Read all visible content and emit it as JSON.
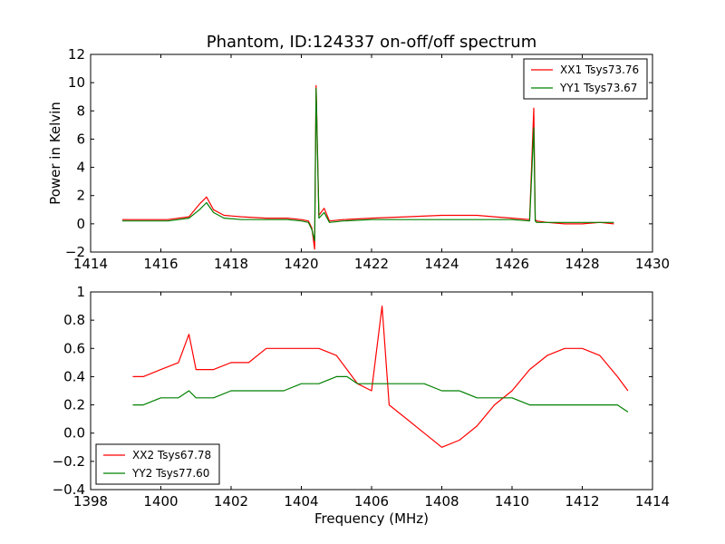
{
  "figure": {
    "title": "Phantom, ID:124337 on-off/off spectrum",
    "shared_xlabel": "Frequency (MHz)"
  },
  "chart_data": [
    {
      "type": "line",
      "title": "Phantom, ID:124337 on-off/off spectrum",
      "xlabel": "",
      "ylabel": "Power in Kelvin",
      "xlim": [
        1414,
        1430
      ],
      "ylim": [
        -2,
        12
      ],
      "xticks": [
        1414,
        1416,
        1418,
        1420,
        1422,
        1424,
        1426,
        1428,
        1430
      ],
      "yticks": [
        -2,
        0,
        2,
        4,
        6,
        8,
        10,
        12
      ],
      "grid": false,
      "legend_position": "top-right",
      "series": [
        {
          "name": "XX1 Tsys73.76",
          "color": "#ff0000",
          "x": [
            1414.9,
            1415.5,
            1416.2,
            1416.8,
            1417.1,
            1417.3,
            1417.5,
            1417.8,
            1418.3,
            1419.0,
            1419.6,
            1420.0,
            1420.2,
            1420.3,
            1420.38,
            1420.42,
            1420.5,
            1420.65,
            1420.8,
            1421.2,
            1422.0,
            1423.0,
            1424.0,
            1424.5,
            1425.0,
            1425.5,
            1426.0,
            1426.5,
            1426.62,
            1426.66,
            1426.7,
            1427.0,
            1427.5,
            1428.0,
            1428.5,
            1428.9
          ],
          "y": [
            0.3,
            0.3,
            0.3,
            0.5,
            1.4,
            1.9,
            1.0,
            0.6,
            0.5,
            0.4,
            0.4,
            0.3,
            0.2,
            -0.3,
            -1.8,
            9.8,
            0.6,
            1.1,
            0.2,
            0.3,
            0.4,
            0.5,
            0.6,
            0.6,
            0.6,
            0.5,
            0.4,
            0.3,
            8.2,
            0.3,
            0.2,
            0.1,
            0.0,
            0.0,
            0.1,
            0.0
          ]
        },
        {
          "name": "YY1 Tsys73.67",
          "color": "#008000",
          "x": [
            1414.9,
            1415.5,
            1416.2,
            1416.8,
            1417.1,
            1417.3,
            1417.5,
            1417.8,
            1418.3,
            1419.0,
            1419.6,
            1420.0,
            1420.2,
            1420.3,
            1420.38,
            1420.42,
            1420.5,
            1420.65,
            1420.8,
            1421.2,
            1422.0,
            1423.0,
            1424.0,
            1424.5,
            1425.0,
            1425.5,
            1426.0,
            1426.5,
            1426.62,
            1426.66,
            1426.7,
            1427.0,
            1427.5,
            1428.0,
            1428.5,
            1428.9
          ],
          "y": [
            0.2,
            0.2,
            0.2,
            0.4,
            1.0,
            1.5,
            0.8,
            0.4,
            0.3,
            0.3,
            0.3,
            0.2,
            0.1,
            -0.4,
            -1.2,
            9.6,
            0.4,
            0.8,
            0.1,
            0.2,
            0.3,
            0.3,
            0.3,
            0.3,
            0.3,
            0.3,
            0.3,
            0.2,
            6.8,
            0.2,
            0.1,
            0.1,
            0.1,
            0.1,
            0.1,
            0.1
          ]
        }
      ]
    },
    {
      "type": "line",
      "title": "",
      "xlabel": "Frequency (MHz)",
      "ylabel": "",
      "xlim": [
        1398,
        1414
      ],
      "ylim": [
        -0.4,
        1.0
      ],
      "xticks": [
        1398,
        1400,
        1402,
        1404,
        1406,
        1408,
        1410,
        1412,
        1414
      ],
      "yticks": [
        -0.4,
        -0.2,
        0.0,
        0.2,
        0.4,
        0.6,
        0.8,
        1.0
      ],
      "grid": false,
      "legend_position": "bottom-left",
      "series": [
        {
          "name": "XX2 Tsys67.78",
          "color": "#ff0000",
          "x": [
            1399.2,
            1399.5,
            1400.0,
            1400.5,
            1400.8,
            1401.0,
            1401.5,
            1402.0,
            1402.5,
            1403.0,
            1403.5,
            1404.0,
            1404.5,
            1405.0,
            1405.3,
            1405.6,
            1406.0,
            1406.3,
            1406.5,
            1407.0,
            1407.5,
            1408.0,
            1408.5,
            1409.0,
            1409.5,
            1410.0,
            1410.5,
            1411.0,
            1411.5,
            1412.0,
            1412.5,
            1413.0,
            1413.3
          ],
          "y": [
            0.4,
            0.4,
            0.45,
            0.5,
            0.7,
            0.45,
            0.45,
            0.5,
            0.5,
            0.6,
            0.6,
            0.6,
            0.6,
            0.55,
            0.45,
            0.35,
            0.3,
            0.9,
            0.2,
            0.1,
            0.0,
            -0.1,
            -0.05,
            0.05,
            0.2,
            0.3,
            0.45,
            0.55,
            0.6,
            0.6,
            0.55,
            0.4,
            0.3
          ]
        },
        {
          "name": "YY2 Tsys77.60",
          "color": "#008000",
          "x": [
            1399.2,
            1399.5,
            1400.0,
            1400.5,
            1400.8,
            1401.0,
            1401.5,
            1402.0,
            1402.5,
            1403.0,
            1403.5,
            1404.0,
            1404.5,
            1405.0,
            1405.3,
            1405.6,
            1406.0,
            1406.3,
            1406.5,
            1407.0,
            1407.5,
            1408.0,
            1408.5,
            1409.0,
            1409.5,
            1410.0,
            1410.5,
            1411.0,
            1411.5,
            1412.0,
            1412.5,
            1413.0,
            1413.3
          ],
          "y": [
            0.2,
            0.2,
            0.25,
            0.25,
            0.3,
            0.25,
            0.25,
            0.3,
            0.3,
            0.3,
            0.3,
            0.35,
            0.35,
            0.4,
            0.4,
            0.35,
            0.35,
            0.35,
            0.35,
            0.35,
            0.35,
            0.3,
            0.3,
            0.25,
            0.25,
            0.25,
            0.2,
            0.2,
            0.2,
            0.2,
            0.2,
            0.2,
            0.15
          ]
        }
      ]
    }
  ]
}
